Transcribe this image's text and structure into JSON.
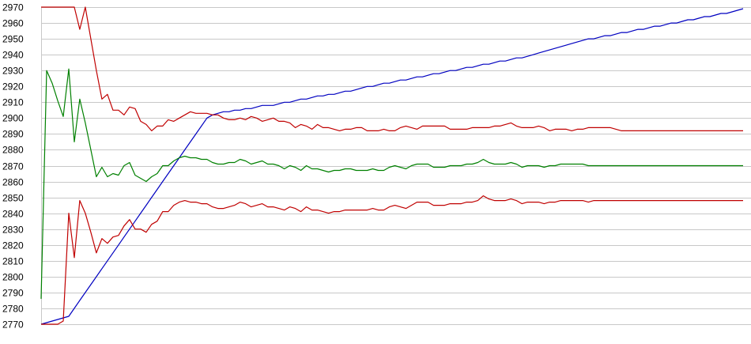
{
  "chart_data": {
    "type": "line",
    "title": "",
    "xlabel": "",
    "ylabel": "",
    "ylim": [
      2770,
      2970
    ],
    "xlim": [
      0,
      127
    ],
    "grid": "horizontal",
    "legend": "none",
    "y_ticks": [
      "2770",
      "2780",
      "2790",
      "2800",
      "2810",
      "2820",
      "2830",
      "2840",
      "2850",
      "2860",
      "2870",
      "2880",
      "2890",
      "2900",
      "2910",
      "2920",
      "2930",
      "2940",
      "2950",
      "2960",
      "2970"
    ],
    "x": [
      0,
      1,
      2,
      3,
      4,
      5,
      6,
      7,
      8,
      9,
      10,
      11,
      12,
      13,
      14,
      15,
      16,
      17,
      18,
      19,
      20,
      21,
      22,
      23,
      24,
      25,
      26,
      27,
      28,
      29,
      30,
      31,
      32,
      33,
      34,
      35,
      36,
      37,
      38,
      39,
      40,
      41,
      42,
      43,
      44,
      45,
      46,
      47,
      48,
      49,
      50,
      51,
      52,
      53,
      54,
      55,
      56,
      57,
      58,
      59,
      60,
      61,
      62,
      63,
      64,
      65,
      66,
      67,
      68,
      69,
      70,
      71,
      72,
      73,
      74,
      75,
      76,
      77,
      78,
      79,
      80,
      81,
      82,
      83,
      84,
      85,
      86,
      87,
      88,
      89,
      90,
      91,
      92,
      93,
      94,
      95,
      96,
      97,
      98,
      99,
      100,
      101,
      102,
      103,
      104,
      105,
      106,
      107,
      108,
      109,
      110,
      111,
      112,
      113,
      114,
      115,
      116,
      117,
      118,
      119,
      120,
      121,
      122,
      123,
      124,
      125,
      126,
      127
    ],
    "series": [
      {
        "color": "#0000c0",
        "values": [
          2770,
          2771,
          2772,
          2773,
          2774,
          2775,
          2780,
          2785,
          2790,
          2795,
          2800,
          2805,
          2810,
          2815,
          2820,
          2825,
          2830,
          2835,
          2840,
          2845,
          2850,
          2855,
          2860,
          2865,
          2870,
          2875,
          2880,
          2885,
          2890,
          2895,
          2900,
          2902,
          2903,
          2904,
          2904,
          2905,
          2905,
          2906,
          2906,
          2907,
          2908,
          2908,
          2908,
          2909,
          2910,
          2910,
          2911,
          2912,
          2912,
          2913,
          2914,
          2914,
          2915,
          2915,
          2916,
          2917,
          2917,
          2918,
          2919,
          2920,
          2920,
          2921,
          2922,
          2922,
          2923,
          2924,
          2924,
          2925,
          2926,
          2926,
          2927,
          2928,
          2928,
          2929,
          2930,
          2930,
          2931,
          2932,
          2932,
          2933,
          2934,
          2934,
          2935,
          2936,
          2936,
          2937,
          2938,
          2938,
          2939,
          2940,
          2941,
          2942,
          2943,
          2944,
          2945,
          2946,
          2947,
          2948,
          2949,
          2950,
          2950,
          2951,
          2952,
          2952,
          2953,
          2954,
          2954,
          2955,
          2956,
          2956,
          2957,
          2958,
          2958,
          2959,
          2960,
          2960,
          2961,
          2962,
          2962,
          2963,
          2964,
          2964,
          2965,
          2966,
          2966,
          2967,
          2968,
          2969
        ]
      },
      {
        "color": "#c00000",
        "values": [
          2970,
          2970,
          2970,
          2970,
          2970,
          2970,
          2970,
          2956,
          2970,
          2950,
          2930,
          2912,
          2915,
          2905,
          2905,
          2902,
          2907,
          2906,
          2898,
          2896,
          2892,
          2895,
          2895,
          2899,
          2898,
          2900,
          2902,
          2904,
          2903,
          2903,
          2903,
          2902,
          2902,
          2900,
          2899,
          2899,
          2900,
          2899,
          2901,
          2900,
          2898,
          2899,
          2900,
          2898,
          2898,
          2897,
          2894,
          2896,
          2895,
          2893,
          2896,
          2894,
          2894,
          2893,
          2892,
          2893,
          2893,
          2894,
          2894,
          2892,
          2892,
          2892,
          2893,
          2892,
          2892,
          2894,
          2895,
          2894,
          2893,
          2895,
          2895,
          2895,
          2895,
          2895,
          2893,
          2893,
          2893,
          2893,
          2894,
          2894,
          2894,
          2894,
          2895,
          2895,
          2896,
          2897,
          2895,
          2894,
          2894,
          2894,
          2895,
          2894,
          2892,
          2893,
          2893,
          2893,
          2892,
          2893,
          2893,
          2894,
          2894,
          2894,
          2894,
          2894,
          2893,
          2892,
          2892,
          2892,
          2892,
          2892,
          2892,
          2892,
          2892,
          2892,
          2892,
          2892,
          2892,
          2892,
          2892,
          2892,
          2892,
          2892,
          2892,
          2892,
          2892,
          2892,
          2892,
          2892
        ]
      },
      {
        "color": "#008000",
        "values": [
          2786,
          2930,
          2922,
          2911,
          2901,
          2931,
          2885,
          2912,
          2897,
          2880,
          2863,
          2869,
          2863,
          2865,
          2864,
          2870,
          2872,
          2864,
          2862,
          2860,
          2863,
          2865,
          2870,
          2870,
          2873,
          2875,
          2876,
          2875,
          2875,
          2874,
          2874,
          2872,
          2871,
          2871,
          2872,
          2872,
          2874,
          2873,
          2871,
          2872,
          2873,
          2871,
          2871,
          2870,
          2868,
          2870,
          2869,
          2867,
          2870,
          2868,
          2868,
          2867,
          2866,
          2867,
          2867,
          2868,
          2868,
          2867,
          2867,
          2867,
          2868,
          2867,
          2867,
          2869,
          2870,
          2869,
          2868,
          2870,
          2871,
          2871,
          2871,
          2869,
          2869,
          2869,
          2870,
          2870,
          2870,
          2871,
          2871,
          2872,
          2874,
          2872,
          2871,
          2871,
          2871,
          2872,
          2871,
          2869,
          2870,
          2870,
          2870,
          2869,
          2870,
          2870,
          2871,
          2871,
          2871,
          2871,
          2871,
          2870,
          2870,
          2870,
          2870,
          2870,
          2870,
          2870,
          2870,
          2870,
          2870,
          2870,
          2870,
          2870,
          2870,
          2870,
          2870,
          2870,
          2870,
          2870,
          2870,
          2870,
          2870,
          2870,
          2870,
          2870,
          2870,
          2870,
          2870,
          2870
        ]
      },
      {
        "color": "#c00000",
        "values": [
          2770,
          2770,
          2770,
          2770,
          2772,
          2840,
          2812,
          2848,
          2840,
          2828,
          2815,
          2824,
          2821,
          2825,
          2826,
          2832,
          2836,
          2830,
          2830,
          2828,
          2833,
          2835,
          2841,
          2841,
          2845,
          2847,
          2848,
          2847,
          2847,
          2846,
          2846,
          2844,
          2843,
          2843,
          2844,
          2845,
          2847,
          2846,
          2844,
          2845,
          2846,
          2844,
          2844,
          2843,
          2842,
          2844,
          2843,
          2841,
          2844,
          2842,
          2842,
          2841,
          2840,
          2841,
          2841,
          2842,
          2842,
          2842,
          2842,
          2842,
          2843,
          2842,
          2842,
          2844,
          2845,
          2844,
          2843,
          2845,
          2847,
          2847,
          2847,
          2845,
          2845,
          2845,
          2846,
          2846,
          2846,
          2847,
          2847,
          2848,
          2851,
          2849,
          2848,
          2848,
          2848,
          2849,
          2848,
          2846,
          2847,
          2847,
          2847,
          2846,
          2847,
          2847,
          2848,
          2848,
          2848,
          2848,
          2848,
          2847,
          2848,
          2848,
          2848,
          2848,
          2848,
          2848,
          2848,
          2848,
          2848,
          2848,
          2848,
          2848,
          2848,
          2848,
          2848,
          2848,
          2848,
          2848,
          2848,
          2848,
          2848,
          2848,
          2848,
          2848,
          2848,
          2848,
          2848,
          2848
        ]
      }
    ]
  }
}
